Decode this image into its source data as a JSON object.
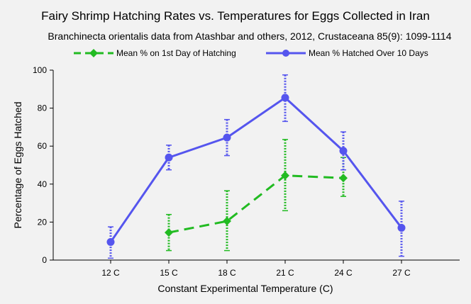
{
  "chart_data": {
    "type": "line",
    "title": "Fairy Shrimp Hatching Rates vs. Temperatures for Eggs Collected in Iran",
    "subtitle": "Branchinecta orientalis data from Atashbar and others, 2012, Crustaceana 85(9): 1099-1114",
    "xlabel": "Constant Experimental Temperature (C)",
    "ylabel": "Percentage of Eggs Hatched",
    "categories": [
      "12 C",
      "15 C",
      "18 C",
      "21 C",
      "24 C",
      "27 C"
    ],
    "ylim": [
      0,
      100
    ],
    "yticks": [
      0,
      20,
      40,
      60,
      80,
      100
    ],
    "grid": false,
    "legend_position": "top",
    "series": [
      {
        "name": "Mean % on 1st Day of Hatching",
        "color": "#22bb22",
        "line_style": "dashed",
        "marker": "diamond",
        "values": [
          null,
          14.5,
          20.5,
          44.5,
          43.2,
          null
        ],
        "err_low": [
          null,
          5,
          5,
          26,
          33.5,
          null
        ],
        "err_high": [
          null,
          24,
          36.5,
          63.5,
          54,
          null
        ]
      },
      {
        "name": "Mean % Hatched Over 10 Days",
        "color": "#5555ee",
        "line_style": "solid",
        "marker": "circle",
        "values": [
          9.5,
          54,
          64.5,
          85.5,
          57.5,
          17
        ],
        "err_low": [
          1,
          47.5,
          55,
          73,
          47.5,
          2
        ],
        "err_high": [
          17.5,
          60.5,
          74,
          97.5,
          67.5,
          31
        ]
      }
    ]
  }
}
